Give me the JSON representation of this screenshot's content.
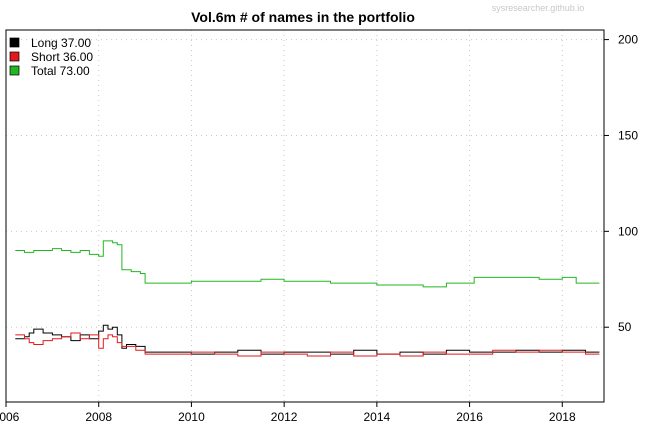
{
  "chart_data": {
    "type": "line",
    "title": "Vol.6m # of names in the portfolio",
    "watermark": "sysresearcher.github.io",
    "xlabel": "",
    "ylabel": "",
    "xlim": [
      2006.0,
      2018.9
    ],
    "ylim": [
      11,
      205
    ],
    "x_ticks": [
      2006,
      2008,
      2010,
      2012,
      2014,
      2016,
      2018
    ],
    "y_ticks": [
      50,
      100,
      150,
      200
    ],
    "y_axis_side": "right",
    "grid": true,
    "legend_position": "top-left",
    "legend": [
      {
        "label": "Long 37.00",
        "color": "#000000"
      },
      {
        "label": "Short 36.00",
        "color": "#e31a1c"
      },
      {
        "label": "Total 73.00",
        "color": "#22b722"
      }
    ],
    "series": [
      {
        "name": "Long",
        "color": "#000000",
        "x": [
          2006.2,
          2006.4,
          2006.5,
          2006.6,
          2006.8,
          2007.0,
          2007.2,
          2007.4,
          2007.6,
          2007.8,
          2008.0,
          2008.1,
          2008.2,
          2008.3,
          2008.4,
          2008.5,
          2008.6,
          2008.8,
          2009.0,
          2009.5,
          2010.0,
          2010.5,
          2011.0,
          2011.5,
          2012.0,
          2012.5,
          2013.0,
          2013.5,
          2014.0,
          2014.5,
          2015.0,
          2015.5,
          2016.0,
          2016.5,
          2017.0,
          2017.5,
          2018.0,
          2018.5,
          2018.8
        ],
        "y": [
          44,
          45,
          47,
          49,
          47,
          46,
          45,
          43,
          46,
          44,
          48,
          51,
          49,
          50,
          46,
          39,
          41,
          40,
          37,
          37,
          36,
          37,
          38,
          36,
          37,
          37,
          36,
          38,
          36,
          37,
          36,
          38,
          37,
          37,
          38,
          37,
          38,
          37,
          37
        ]
      },
      {
        "name": "Short",
        "color": "#e31a1c",
        "x": [
          2006.2,
          2006.4,
          2006.5,
          2006.6,
          2006.8,
          2007.0,
          2007.2,
          2007.4,
          2007.6,
          2007.8,
          2008.0,
          2008.1,
          2008.2,
          2008.3,
          2008.4,
          2008.5,
          2008.6,
          2008.8,
          2009.0,
          2009.5,
          2010.0,
          2010.5,
          2011.0,
          2011.5,
          2012.0,
          2012.5,
          2013.0,
          2013.5,
          2014.0,
          2014.5,
          2015.0,
          2015.5,
          2016.0,
          2016.5,
          2017.0,
          2017.5,
          2018.0,
          2018.5,
          2018.8
        ],
        "y": [
          46,
          44,
          42,
          41,
          43,
          44,
          45,
          47,
          44,
          46,
          39,
          44,
          46,
          45,
          42,
          40,
          40,
          38,
          36,
          36,
          37,
          36,
          35,
          37,
          36,
          35,
          37,
          35,
          36,
          35,
          37,
          36,
          36,
          38,
          37,
          38,
          37,
          36,
          36
        ]
      },
      {
        "name": "Total",
        "color": "#22b722",
        "x": [
          2006.2,
          2006.4,
          2006.6,
          2006.8,
          2007.0,
          2007.2,
          2007.4,
          2007.6,
          2007.8,
          2008.0,
          2008.1,
          2008.3,
          2008.4,
          2008.5,
          2008.7,
          2008.9,
          2009.0,
          2009.5,
          2010.0,
          2011.0,
          2011.5,
          2012.0,
          2012.5,
          2013.0,
          2013.5,
          2014.0,
          2014.5,
          2015.0,
          2015.5,
          2016.0,
          2016.1,
          2016.5,
          2017.0,
          2017.5,
          2018.0,
          2018.3,
          2018.8
        ],
        "y": [
          90,
          89,
          90,
          90,
          91,
          90,
          89,
          90,
          88,
          87,
          95,
          94,
          93,
          80,
          79,
          78,
          73,
          73,
          74,
          74,
          75,
          74,
          74,
          73,
          73,
          72,
          72,
          71,
          73,
          73,
          76,
          76,
          76,
          75,
          76,
          73,
          73
        ]
      }
    ]
  }
}
